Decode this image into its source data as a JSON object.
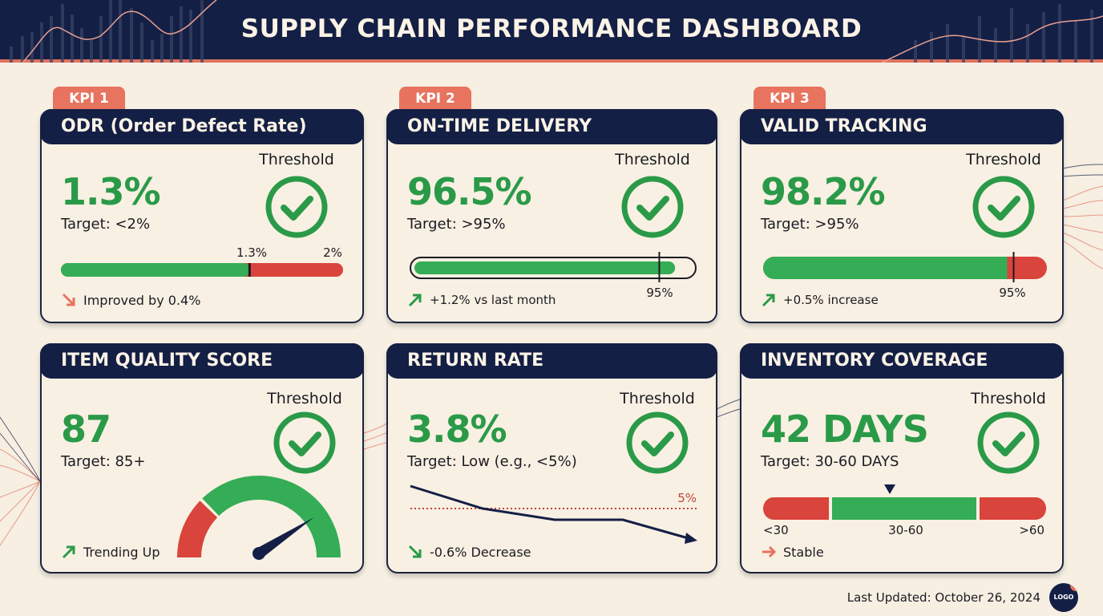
{
  "header": {
    "title": "SUPPLY CHAIN PERFORMANCE DASHBOARD"
  },
  "colors": {
    "navy": "#141f45",
    "green": "#2a9a48",
    "red": "#d9443c",
    "coral": "#e8735f",
    "background": "#f6efe2"
  },
  "cards": [
    {
      "tab": "KPI 1",
      "title": "ODR (Order Defect Rate)",
      "value": "1.3%",
      "target": "Target: <2%",
      "threshold_label": "Threshold",
      "threshold_icon": "check-circle-icon",
      "bar": {
        "value_label": "1.3%",
        "limit_label": "2%",
        "fill_fraction": 0.67
      },
      "trend": {
        "icon": "arrow-down-right-icon",
        "color": "#e8735f",
        "text": "Improved by 0.4%"
      }
    },
    {
      "tab": "KPI 2",
      "title": "ON-TIME DELIVERY",
      "value": "96.5%",
      "target": "Target: >95%",
      "threshold_label": "Threshold",
      "threshold_icon": "check-circle-icon",
      "bar": {
        "marker_label": "95%",
        "fill_fraction": 0.94,
        "marker_fraction": 0.87
      },
      "trend": {
        "icon": "arrow-up-right-icon",
        "color": "#2a9a48",
        "text": "+1.2% vs last month"
      }
    },
    {
      "tab": "KPI 3",
      "title": "VALID TRACKING",
      "value": "98.2%",
      "target": "Target: >95%",
      "threshold_label": "Threshold",
      "threshold_icon": "check-circle-icon",
      "bar": {
        "marker_label": "95%",
        "fill_fraction": 0.86,
        "marker_fraction": 0.88
      },
      "trend": {
        "icon": "arrow-up-right-icon",
        "color": "#2a9a48",
        "text": "+0.5% increase"
      }
    },
    {
      "title": "ITEM QUALITY SCORE",
      "value": "87",
      "target": "Target: 85+",
      "threshold_label": "Threshold",
      "threshold_icon": "check-circle-icon",
      "gauge": {
        "level": 0.8,
        "red_fraction": 0.25
      },
      "trend": {
        "icon": "arrow-up-right-icon",
        "color": "#2a9a48",
        "text": "Trending Up"
      }
    },
    {
      "title": "RETURN RATE",
      "value": "3.8%",
      "target": "Target: Low (e.g., <5%)",
      "threshold_label": "Threshold",
      "threshold_icon": "check-circle-icon",
      "line": {
        "threshold_label": "5%"
      },
      "trend": {
        "icon": "arrow-down-right-icon",
        "color": "#2a9a48",
        "text": "-0.6% Decrease"
      }
    },
    {
      "title": "INVENTORY COVERAGE",
      "value": "42 DAYS",
      "target": "Target: 30-60 DAYS",
      "threshold_label": "Threshold",
      "threshold_icon": "check-circle-icon",
      "range": {
        "labels": [
          "<30",
          "30-60",
          ">60"
        ],
        "value_days": 42
      },
      "trend": {
        "icon": "arrow-right-icon",
        "color": "#e8735f",
        "text": "Stable"
      }
    }
  ],
  "footer": {
    "last_updated": "Last Updated: October 26, 2024",
    "logo": "LOGO"
  }
}
